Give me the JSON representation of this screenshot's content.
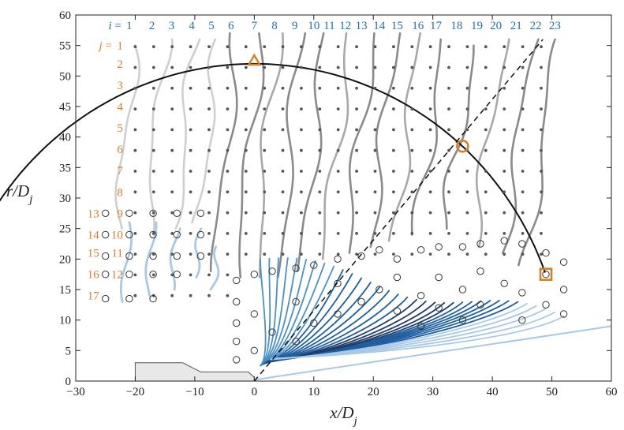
{
  "chart_data": {
    "type": "line",
    "title": "",
    "xlabel_main": "x/D",
    "xlabel_sub": "j",
    "ylabel_main": "r/D",
    "ylabel_sub": "j",
    "xlim": [
      -30,
      60
    ],
    "ylim": [
      0,
      60
    ],
    "xticks": [
      -30,
      -20,
      -10,
      0,
      10,
      20,
      30,
      40,
      50,
      60
    ],
    "yticks": [
      0,
      5,
      10,
      15,
      20,
      25,
      30,
      35,
      40,
      45,
      50,
      55,
      60
    ],
    "grid": false,
    "i_label": {
      "prefix": "i",
      "eq": " = ",
      "values": [
        1,
        2,
        3,
        4,
        5,
        6,
        7,
        8,
        9,
        10,
        11,
        12,
        13,
        14,
        15,
        16,
        17,
        18,
        19,
        20,
        21,
        22,
        23
      ]
    },
    "i_label_x": [
      -21,
      -17.2,
      -13.9,
      -10.5,
      -7.2,
      -3.9,
      0,
      3.4,
      6.8,
      10,
      12.6,
      15.3,
      18,
      21,
      24,
      27.5,
      30.5,
      34,
      37.4,
      40.6,
      44,
      47.3,
      50.5
    ],
    "j_label": {
      "prefix": "j",
      "eq": " = ",
      "values": [
        1,
        2,
        3,
        4,
        5,
        6,
        7,
        8,
        9,
        10,
        11,
        12
      ]
    },
    "j_label_y": [
      55,
      52,
      48.5,
      45,
      41.5,
      38,
      34.5,
      31,
      27.5,
      24,
      21,
      17.5
    ],
    "j_label_extra": {
      "values": [
        13,
        14,
        15,
        16,
        17
      ],
      "y": [
        27.5,
        24,
        21,
        17.5,
        14
      ]
    },
    "grid_points": {
      "x_start": -20,
      "x_end": 50,
      "x_step": 3.1,
      "y_start": 14,
      "y_end": 55,
      "y_step": 3.4
    },
    "open_points": [
      [
        -25,
        27.5
      ],
      [
        -21,
        27.5
      ],
      [
        -17,
        27.5
      ],
      [
        -13,
        27.5
      ],
      [
        -9,
        27.5
      ],
      [
        -25,
        24
      ],
      [
        -21,
        24
      ],
      [
        -17,
        24
      ],
      [
        -13,
        24
      ],
      [
        -9,
        24
      ],
      [
        -25,
        20.5
      ],
      [
        -21,
        20.5
      ],
      [
        -17,
        20.5
      ],
      [
        -13,
        20.5
      ],
      [
        -9,
        20.5
      ],
      [
        -25,
        17.5
      ],
      [
        -21,
        17.5
      ],
      [
        -17,
        17.5
      ],
      [
        -13,
        17.5
      ],
      [
        -25,
        13.5
      ],
      [
        -21,
        13.5
      ],
      [
        -17,
        13.5
      ],
      [
        0,
        17.5
      ],
      [
        3,
        18
      ],
      [
        7,
        18.5
      ],
      [
        10,
        19
      ],
      [
        14,
        20
      ],
      [
        18,
        20.5
      ],
      [
        21,
        21.5
      ],
      [
        24,
        20
      ],
      [
        28,
        21.5
      ],
      [
        31,
        22
      ],
      [
        35,
        22
      ],
      [
        38,
        22.5
      ],
      [
        42,
        23
      ],
      [
        45,
        22.5
      ],
      [
        49,
        21
      ],
      [
        52,
        19.5
      ],
      [
        -3,
        16.5
      ],
      [
        -3,
        13
      ],
      [
        -3,
        9.5
      ],
      [
        -3,
        6.5
      ],
      [
        -3,
        3.5
      ],
      [
        0,
        5
      ],
      [
        0,
        11
      ],
      [
        3,
        8
      ],
      [
        7,
        6.5
      ],
      [
        7,
        13
      ],
      [
        10,
        9.5
      ],
      [
        14,
        11
      ],
      [
        14,
        16
      ],
      [
        18,
        13
      ],
      [
        21,
        15
      ],
      [
        24,
        11.5
      ],
      [
        24,
        17
      ],
      [
        28,
        14
      ],
      [
        31,
        17
      ],
      [
        31,
        12
      ],
      [
        35,
        15
      ],
      [
        38,
        18
      ],
      [
        38,
        12.5
      ],
      [
        42,
        16
      ],
      [
        45,
        14.5
      ],
      [
        45,
        10
      ],
      [
        49,
        12.5
      ],
      [
        49,
        17.5
      ],
      [
        52,
        15
      ],
      [
        52,
        11
      ],
      [
        28,
        9
      ],
      [
        35,
        10
      ]
    ],
    "arc": {
      "center": [
        0,
        0
      ],
      "radius": 52,
      "angle_start_deg": 158,
      "angle_end_deg": 20
    },
    "dashed_line": {
      "x": [
        0,
        48.5
      ],
      "y": [
        0,
        56
      ]
    },
    "nozzle_outline": {
      "x": [
        -20,
        -20,
        -12,
        -9,
        -9,
        -1,
        0,
        0
      ],
      "y": [
        0,
        3,
        3,
        1.5,
        1.5,
        1.5,
        0.6,
        0
      ]
    },
    "ramp_line": {
      "x": [
        0,
        60
      ],
      "y": [
        0.2,
        9
      ]
    },
    "markers": [
      {
        "shape": "triangle",
        "x": 0,
        "y": 52.5
      },
      {
        "shape": "circle",
        "x": 35,
        "y": 38.5
      },
      {
        "shape": "square",
        "x": 49,
        "y": 17.5
      }
    ],
    "series": [
      {
        "group": "light-gray",
        "x0": -20,
        "y_top": 55,
        "y_bottom": 25
      },
      {
        "group": "light-gray",
        "x0": -15,
        "y_top": 56,
        "y_bottom": 24
      },
      {
        "group": "light-gray",
        "x0": -10,
        "y_top": 56,
        "y_bottom": 25
      },
      {
        "group": "light-gray",
        "x0": -6,
        "y_top": 56,
        "y_bottom": 26
      },
      {
        "group": "dark-gray",
        "x0": -3,
        "y_top": 57,
        "y_bottom": 18
      },
      {
        "group": "dark-gray",
        "x0": 1,
        "y_top": 57,
        "y_bottom": 17
      },
      {
        "group": "dark-gray",
        "x0": 4,
        "y_top": 57,
        "y_bottom": 17
      },
      {
        "group": "dark-gray",
        "x0": 8,
        "y_top": 57,
        "y_bottom": 17
      },
      {
        "group": "dark-gray",
        "x0": 12,
        "y_top": 57,
        "y_bottom": 18
      },
      {
        "group": "dark-gray",
        "x0": 16,
        "y_top": 57,
        "y_bottom": 20
      },
      {
        "group": "dark-gray",
        "x0": 20,
        "y_top": 57,
        "y_bottom": 21
      },
      {
        "group": "dark-gray",
        "x0": 24,
        "y_top": 57,
        "y_bottom": 22
      },
      {
        "group": "dark-gray",
        "x0": 28,
        "y_top": 57,
        "y_bottom": 23
      },
      {
        "group": "dark-gray",
        "x0": 32,
        "y_top": 56,
        "y_bottom": 24
      },
      {
        "group": "dark-gray",
        "x0": 37,
        "y_top": 55,
        "y_bottom": 25
      },
      {
        "group": "dark-gray",
        "x0": 42,
        "y_top": 56,
        "y_bottom": 22
      },
      {
        "group": "dark-gray",
        "x0": 47,
        "y_top": 56,
        "y_bottom": 21
      },
      {
        "group": "dark-gray",
        "x0": 51,
        "y_top": 56,
        "y_bottom": 19
      }
    ],
    "blue_series_count": 34,
    "colors": {
      "axis": "#222222",
      "grid_point": "#555555",
      "open_point_stroke": "#333333",
      "light_gray": "#cfcfcf",
      "mid_gray": "#a8a8a8",
      "dark_gray": "#8a8a8a",
      "blue_light": "#a8c8e6",
      "blue_mid": "#4a90c8",
      "blue_dark": "#1f5fa0",
      "blue_navy": "#233d6a",
      "orange": "#d67f2a",
      "index_blue": "#1f6fb3",
      "nozzle_fill": "#e8e8e8",
      "nozzle_stroke": "#555555",
      "ramp": "#a8c8e6"
    }
  }
}
